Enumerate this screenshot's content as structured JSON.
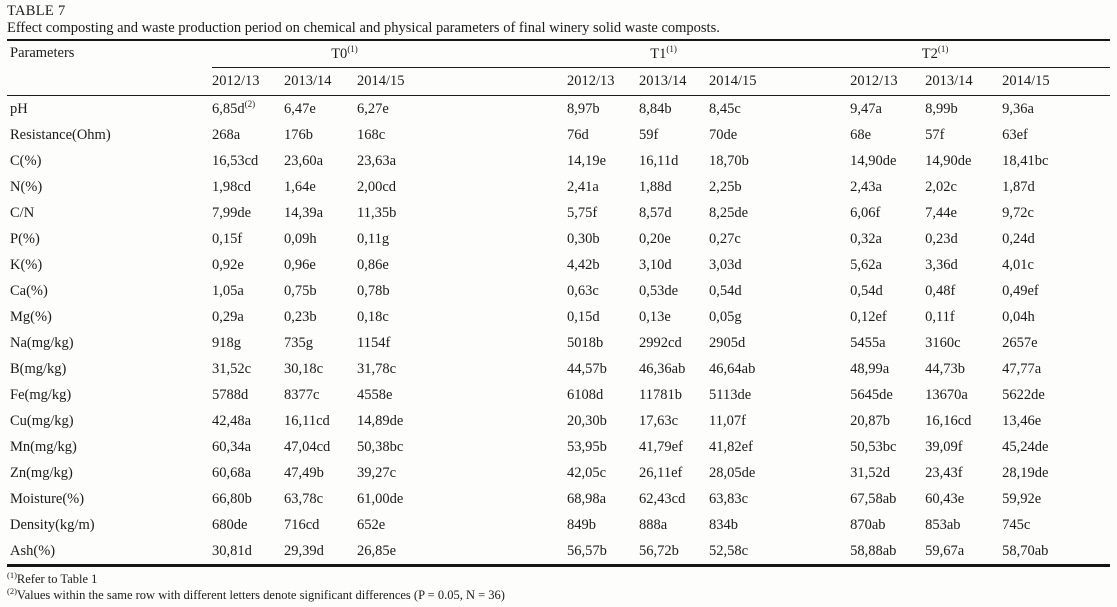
{
  "table_label": "TABLE 7",
  "caption": "Effect composting and waste production period on chemical and physical parameters of final winery solid waste composts.",
  "header": {
    "parameters_label": "Parameters",
    "groups": [
      {
        "label": "T0",
        "sup": "(1)",
        "years": [
          "2012/13",
          "2013/14",
          "2014/15"
        ]
      },
      {
        "label": "T1",
        "sup": "(1)",
        "years": [
          "2012/13",
          "2013/14",
          "2014/15"
        ]
      },
      {
        "label": "T2",
        "sup": "(1)",
        "years": [
          "2012/13",
          "2013/14",
          "2014/15"
        ]
      }
    ]
  },
  "rows": [
    {
      "param": "pH",
      "values": [
        "6,85d^(2)",
        "6,47e",
        "6,27e",
        "8,97b",
        "8,84b",
        "8,45c",
        "9,47a",
        "8,99b",
        "9,36a"
      ]
    },
    {
      "param": "Resistance(Ohm)",
      "values": [
        "268a",
        "176b",
        "168c",
        "76d",
        "59f",
        "70de",
        "68e",
        "57f",
        "63ef"
      ]
    },
    {
      "param": "C(%)",
      "values": [
        "16,53cd",
        "23,60a",
        "23,63a",
        "14,19e",
        "16,11d",
        "18,70b",
        "14,90de",
        "14,90de",
        "18,41bc"
      ]
    },
    {
      "param": "N(%)",
      "values": [
        "1,98cd",
        "1,64e",
        "2,00cd",
        "2,41a",
        "1,88d",
        "2,25b",
        "2,43a",
        "2,02c",
        "1,87d"
      ]
    },
    {
      "param": "C/N",
      "values": [
        "7,99de",
        "14,39a",
        "11,35b",
        "5,75f",
        "8,57d",
        "8,25de",
        "6,06f",
        "7,44e",
        "9,72c"
      ]
    },
    {
      "param": "P(%)",
      "values": [
        "0,15f",
        "0,09h",
        "0,11g",
        "0,30b",
        "0,20e",
        "0,27c",
        "0,32a",
        "0,23d",
        "0,24d"
      ]
    },
    {
      "param": "K(%)",
      "values": [
        "0,92e",
        "0,96e",
        "0,86e",
        "4,42b",
        "3,10d",
        "3,03d",
        "5,62a",
        "3,36d",
        "4,01c"
      ]
    },
    {
      "param": "Ca(%)",
      "values": [
        "1,05a",
        "0,75b",
        "0,78b",
        "0,63c",
        "0,53de",
        "0,54d",
        "0,54d",
        "0,48f",
        "0,49ef"
      ]
    },
    {
      "param": "Mg(%)",
      "values": [
        "0,29a",
        "0,23b",
        "0,18c",
        "0,15d",
        "0,13e",
        "0,05g",
        "0,12ef",
        "0,11f",
        "0,04h"
      ]
    },
    {
      "param": "Na(mg/kg)",
      "values": [
        "918g",
        "735g",
        "1154f",
        "5018b",
        "2992cd",
        "2905d",
        "5455a",
        "3160c",
        "2657e"
      ]
    },
    {
      "param": "B(mg/kg)",
      "values": [
        "31,52c",
        "30,18c",
        "31,78c",
        "44,57b",
        "46,36ab",
        "46,64ab",
        "48,99a",
        "44,73b",
        "47,77a"
      ]
    },
    {
      "param": "Fe(mg/kg)",
      "values": [
        "5788d",
        "8377c",
        "4558e",
        "6108d",
        "11781b",
        "5113de",
        "5645de",
        "13670a",
        "5622de"
      ]
    },
    {
      "param": "Cu(mg/kg)",
      "values": [
        "42,48a",
        "16,11cd",
        "14,89de",
        "20,30b",
        "17,63c",
        "11,07f",
        "20,87b",
        "16,16cd",
        "13,46e"
      ]
    },
    {
      "param": "Mn(mg/kg)",
      "values": [
        "60,34a",
        "47,04cd",
        "50,38bc",
        "53,95b",
        "41,79ef",
        "41,82ef",
        "50,53bc",
        "39,09f",
        "45,24de"
      ]
    },
    {
      "param": "Zn(mg/kg)",
      "values": [
        "60,68a",
        "47,49b",
        "39,27c",
        "42,05c",
        "26,11ef",
        "28,05de",
        "31,52d",
        "23,43f",
        "28,19de"
      ]
    },
    {
      "param": "Moisture(%)",
      "values": [
        "66,80b",
        "63,78c",
        "61,00de",
        "68,98a",
        "62,43cd",
        "63,83c",
        "67,58ab",
        "60,43e",
        "59,92e"
      ]
    },
    {
      "param": "Density(kg/m)",
      "values": [
        "680de",
        "716cd",
        "652e",
        "849b",
        "888a",
        "834b",
        "870ab",
        "853ab",
        "745c"
      ]
    },
    {
      "param": "Ash(%)",
      "values": [
        "30,81d",
        "29,39d",
        "26,85e",
        "56,57b",
        "56,72b",
        "52,58c",
        "58,88ab",
        "59,67a",
        "58,70ab"
      ]
    }
  ],
  "footnotes": [
    {
      "sup": "(1)",
      "text": "Refer to Table 1"
    },
    {
      "sup": "(2)",
      "text": "Values within the same row with different letters denote significant differences (P = 0.05, N = 36)"
    }
  ]
}
